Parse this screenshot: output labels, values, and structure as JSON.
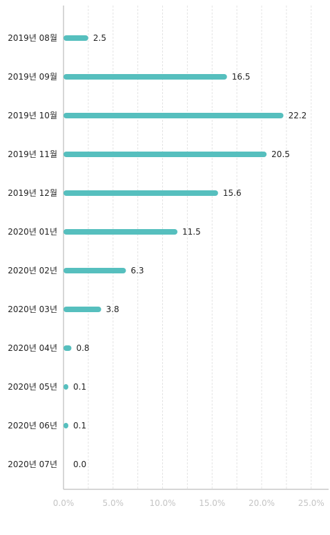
{
  "chart_data": {
    "type": "bar",
    "orientation": "horizontal",
    "categories": [
      "2019년 08월",
      "2019년 09월",
      "2019년 10월",
      "2019년 11월",
      "2019년 12월",
      "2020년 01년",
      "2020년 02년",
      "2020년 03년",
      "2020년 04년",
      "2020년 05년",
      "2020년 06년",
      "2020년 07년"
    ],
    "values": [
      2.5,
      16.5,
      22.2,
      20.5,
      15.6,
      11.5,
      6.3,
      3.8,
      0.8,
      0.1,
      0.1,
      0.0
    ],
    "value_labels": [
      "2.5",
      "16.5",
      "22.2",
      "20.5",
      "15.6",
      "11.5",
      "6.3",
      "3.8",
      "0.8",
      "0.1",
      "0.1",
      "0.0"
    ],
    "x_ticks": [
      0,
      5,
      10,
      15,
      20,
      25
    ],
    "x_tick_labels": [
      "0.0%",
      "5.0%",
      "10.0%",
      "15.0%",
      "20.0%",
      "25.0%"
    ],
    "xlim": [
      0,
      27
    ],
    "title": "",
    "xlabel": "",
    "ylabel": "",
    "grid": true,
    "legend": "none",
    "colors": {
      "bar": "#56bfbe",
      "grid": "#e3e3e3",
      "axis": "#c8c8c8"
    }
  }
}
